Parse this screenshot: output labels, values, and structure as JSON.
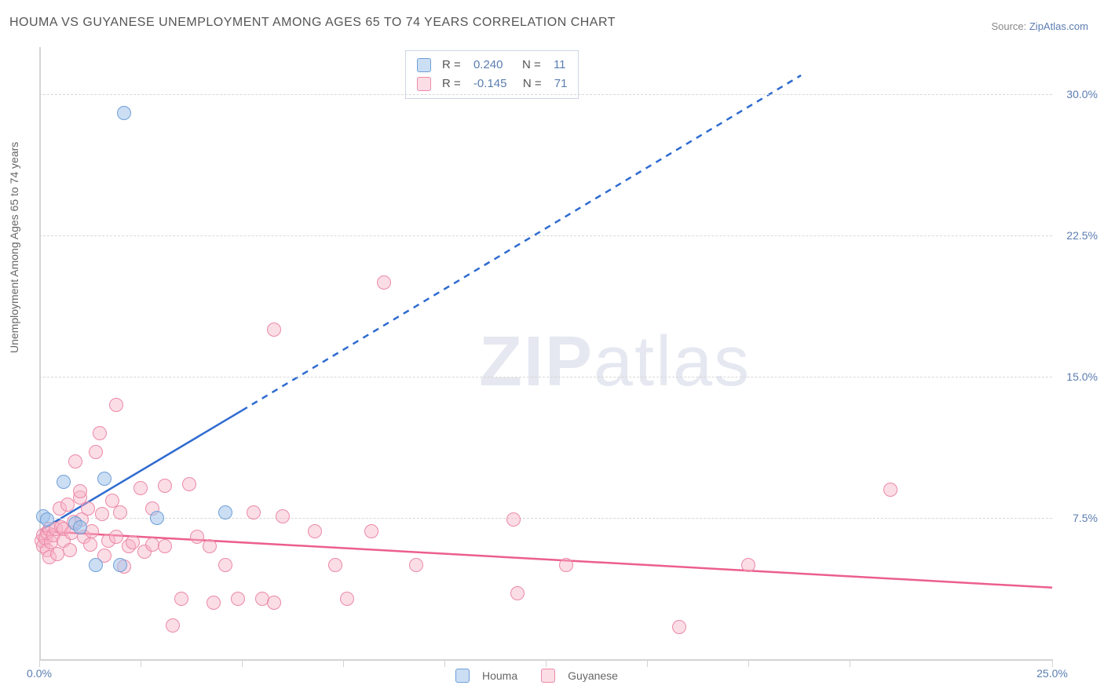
{
  "title": "HOUMA VS GUYANESE UNEMPLOYMENT AMONG AGES 65 TO 74 YEARS CORRELATION CHART",
  "source_prefix": "Source: ",
  "source_link": "ZipAtlas.com",
  "ylabel": "Unemployment Among Ages 65 to 74 years",
  "watermark_a": "ZIP",
  "watermark_b": "atlas",
  "chart": {
    "type": "scatter",
    "xlim": [
      0,
      25
    ],
    "ylim": [
      0,
      32.5
    ],
    "x_axis_y": 0,
    "xtick_positions": [
      0,
      2.5,
      5,
      7.5,
      10,
      12.5,
      15,
      17.5,
      20,
      25
    ],
    "xtick_labels": {
      "0": "0.0%",
      "25": "25.0%"
    },
    "ytick_positions": [
      7.5,
      15,
      22.5,
      30
    ],
    "ytick_labels": {
      "7.5": "7.5%",
      "15": "15.0%",
      "22.5": "22.5%",
      "30": "30.0%"
    },
    "grid_color": "#d8d8d8",
    "axis_color": "#d4d4d4",
    "background": "#ffffff",
    "marker_radius": 9,
    "series": [
      {
        "key": "houma",
        "label": "Houma",
        "color_fill": "rgba(160,195,235,0.55)",
        "color_border": "#6fa0d8",
        "R": "0.240",
        "N": "11",
        "trend": {
          "x1": 0,
          "y1": 6.8,
          "x2_solid": 5,
          "y2_solid": 13.2,
          "x2_dash": 18.8,
          "y2_dash": 31.0,
          "color": "#2f6bd0",
          "width": 2.5
        },
        "points": [
          [
            0.1,
            7.6
          ],
          [
            0.2,
            7.4
          ],
          [
            0.6,
            9.4
          ],
          [
            0.9,
            7.2
          ],
          [
            1.0,
            7.0
          ],
          [
            1.4,
            5.0
          ],
          [
            1.6,
            9.6
          ],
          [
            2.0,
            5.0
          ],
          [
            2.9,
            7.5
          ],
          [
            4.6,
            7.8
          ],
          [
            2.1,
            29.0
          ]
        ]
      },
      {
        "key": "guyanese",
        "label": "Guyanese",
        "color_fill": "rgba(247,180,200,0.45)",
        "color_border": "#ec89a8",
        "R": "-0.145",
        "N": "71",
        "trend": {
          "x1": 0,
          "y1": 6.8,
          "x2_solid": 25,
          "y2_solid": 3.8,
          "color": "#ec5f8c",
          "width": 2.5
        },
        "points": [
          [
            0.05,
            6.3
          ],
          [
            0.1,
            6.6
          ],
          [
            0.1,
            6.0
          ],
          [
            0.15,
            6.4
          ],
          [
            0.2,
            5.8
          ],
          [
            0.2,
            6.7
          ],
          [
            0.25,
            6.9
          ],
          [
            0.25,
            5.4
          ],
          [
            0.3,
            6.2
          ],
          [
            0.35,
            6.6
          ],
          [
            0.4,
            6.9
          ],
          [
            0.45,
            5.6
          ],
          [
            0.5,
            8.0
          ],
          [
            0.55,
            7.0
          ],
          [
            0.6,
            6.3
          ],
          [
            0.6,
            6.9
          ],
          [
            0.7,
            8.2
          ],
          [
            0.75,
            5.8
          ],
          [
            0.8,
            6.7
          ],
          [
            0.85,
            7.3
          ],
          [
            0.9,
            10.5
          ],
          [
            1.0,
            8.6
          ],
          [
            1.0,
            8.9
          ],
          [
            1.05,
            7.4
          ],
          [
            1.1,
            6.5
          ],
          [
            1.2,
            8.0
          ],
          [
            1.25,
            6.1
          ],
          [
            1.3,
            6.8
          ],
          [
            1.4,
            11.0
          ],
          [
            1.5,
            12.0
          ],
          [
            1.55,
            7.7
          ],
          [
            1.6,
            5.5
          ],
          [
            1.7,
            6.3
          ],
          [
            1.8,
            8.4
          ],
          [
            1.9,
            6.5
          ],
          [
            1.9,
            13.5
          ],
          [
            2.0,
            7.8
          ],
          [
            2.1,
            4.9
          ],
          [
            2.2,
            6.0
          ],
          [
            2.3,
            6.2
          ],
          [
            2.5,
            9.1
          ],
          [
            2.6,
            5.7
          ],
          [
            2.8,
            8.0
          ],
          [
            2.8,
            6.1
          ],
          [
            3.1,
            9.2
          ],
          [
            3.1,
            6.0
          ],
          [
            3.3,
            1.8
          ],
          [
            3.5,
            3.2
          ],
          [
            3.7,
            9.3
          ],
          [
            3.9,
            6.5
          ],
          [
            4.2,
            6.0
          ],
          [
            4.3,
            3.0
          ],
          [
            4.6,
            5.0
          ],
          [
            4.9,
            3.2
          ],
          [
            5.3,
            7.8
          ],
          [
            5.5,
            3.2
          ],
          [
            5.8,
            17.5
          ],
          [
            5.8,
            3.0
          ],
          [
            6.0,
            7.6
          ],
          [
            6.8,
            6.8
          ],
          [
            7.3,
            5.0
          ],
          [
            7.6,
            3.2
          ],
          [
            8.2,
            6.8
          ],
          [
            9.3,
            5.0
          ],
          [
            11.7,
            7.4
          ],
          [
            11.8,
            3.5
          ],
          [
            13.0,
            5.0
          ],
          [
            15.8,
            1.7
          ],
          [
            17.5,
            5.0
          ],
          [
            21.0,
            9.0
          ],
          [
            8.5,
            20.0
          ]
        ]
      }
    ]
  },
  "legend_top": {
    "r_label": "R  =",
    "n_label": "N  ="
  },
  "legend_bottom": {
    "items": [
      "Houma",
      "Guyanese"
    ]
  }
}
